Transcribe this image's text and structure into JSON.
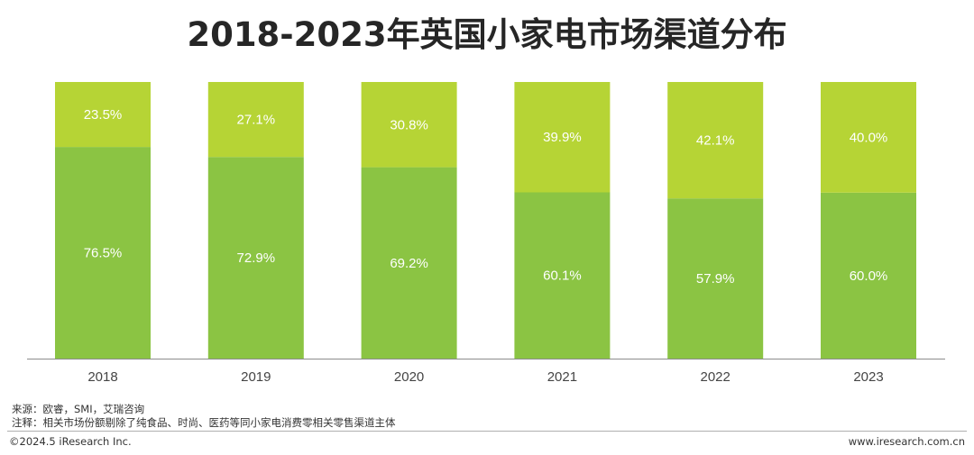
{
  "chart_data": {
    "type": "bar",
    "stacked": true,
    "title": "2018-2023年英国小家电市场渠道分布",
    "categories": [
      "2018",
      "2019",
      "2020",
      "2021",
      "2022",
      "2023"
    ],
    "series": [
      {
        "values": [
          76.5,
          72.9,
          69.2,
          60.1,
          57.9,
          60.0
        ],
        "labels": [
          "76.5%",
          "72.9%",
          "69.2%",
          "60.1%",
          "57.9%",
          "60.0%"
        ],
        "color": "#8bc443"
      },
      {
        "values": [
          23.5,
          27.1,
          30.8,
          39.9,
          42.1,
          40.0
        ],
        "labels": [
          "23.5%",
          "27.1%",
          "30.8%",
          "39.9%",
          "42.1%",
          "40.0%"
        ],
        "color": "#b6d435"
      }
    ],
    "ylim": [
      0,
      100
    ],
    "xlabel": "",
    "ylabel": "",
    "grid": false,
    "legend": "none"
  },
  "notes": {
    "source": "来源：欧睿，SMI，艾瑞咨询",
    "note": "注释：相关市场份额剔除了纯食品、时尚、医药等同小家电消费零相关零售渠道主体"
  },
  "footer": {
    "copyright": "©2024.5 iResearch Inc.",
    "website": "www.iresearch.com.cn"
  }
}
